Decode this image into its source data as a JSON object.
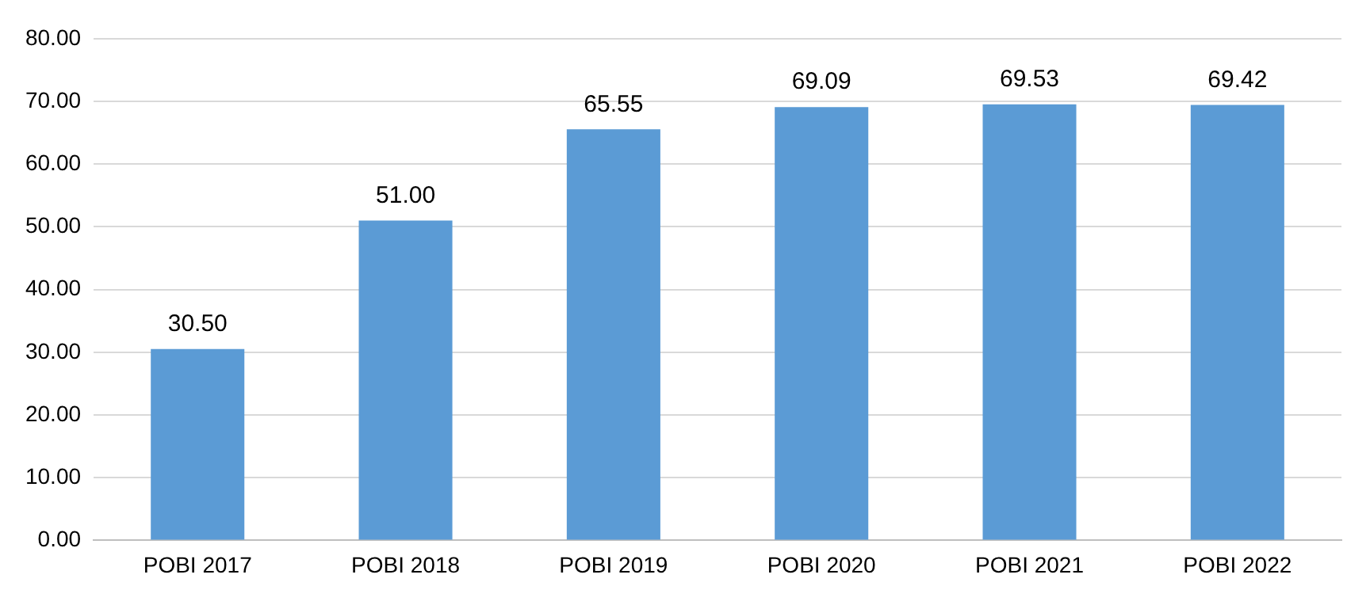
{
  "chart_data": {
    "type": "bar",
    "categories": [
      "POBI 2017",
      "POBI 2018",
      "POBI 2019",
      "POBI 2020",
      "POBI 2021",
      "POBI 2022"
    ],
    "values": [
      30.5,
      51,
      65.55,
      69.09,
      69.53,
      69.42
    ],
    "value_labels": [
      "30.50",
      "51.00",
      "65.55",
      "69.09",
      "69.53",
      "69.42"
    ],
    "color": "#5b9bd5",
    "ylim": [
      0,
      80
    ],
    "yticks": [
      {
        "value": 0,
        "label": "0.00"
      },
      {
        "value": 10,
        "label": "10.00"
      },
      {
        "value": 20,
        "label": "20.00"
      },
      {
        "value": 30,
        "label": "30.00"
      },
      {
        "value": 40,
        "label": "40.00"
      },
      {
        "value": 50,
        "label": "50.00"
      },
      {
        "value": 60,
        "label": "60.00"
      },
      {
        "value": 70,
        "label": "70.00"
      },
      {
        "value": 80,
        "label": "80.00"
      }
    ],
    "grid": "y"
  }
}
